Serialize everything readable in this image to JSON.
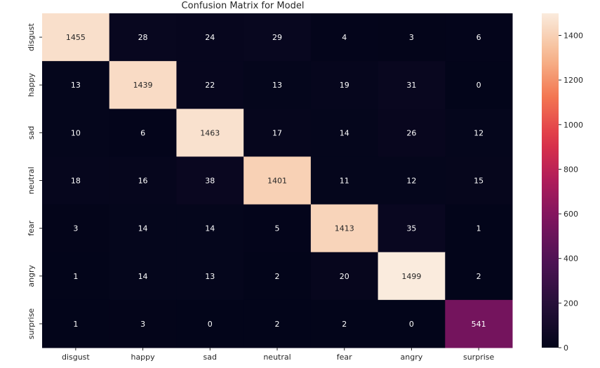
{
  "chart_data": {
    "type": "heatmap",
    "title": "Confusion Matrix for Model",
    "xlabel": "",
    "ylabel": "",
    "x_categories": [
      "disgust",
      "happy",
      "sad",
      "neutral",
      "fear",
      "angry",
      "surprise"
    ],
    "y_categories": [
      "disgust",
      "happy",
      "sad",
      "neutral",
      "fear",
      "angry",
      "surprise"
    ],
    "values": [
      [
        1455,
        28,
        24,
        29,
        4,
        3,
        6
      ],
      [
        13,
        1439,
        22,
        13,
        19,
        31,
        0
      ],
      [
        10,
        6,
        1463,
        17,
        14,
        26,
        12
      ],
      [
        18,
        16,
        38,
        1401,
        11,
        12,
        15
      ],
      [
        3,
        14,
        14,
        5,
        1413,
        35,
        1
      ],
      [
        1,
        14,
        13,
        2,
        20,
        1499,
        2
      ],
      [
        1,
        3,
        0,
        2,
        2,
        0,
        541
      ]
    ],
    "colorbar": {
      "range": [
        0,
        1499
      ],
      "ticks": [
        "0",
        "200",
        "400",
        "600",
        "800",
        "1000",
        "1200",
        "1400"
      ],
      "colormap": "rocket"
    },
    "grid": false,
    "legend": "colorbar-right"
  }
}
